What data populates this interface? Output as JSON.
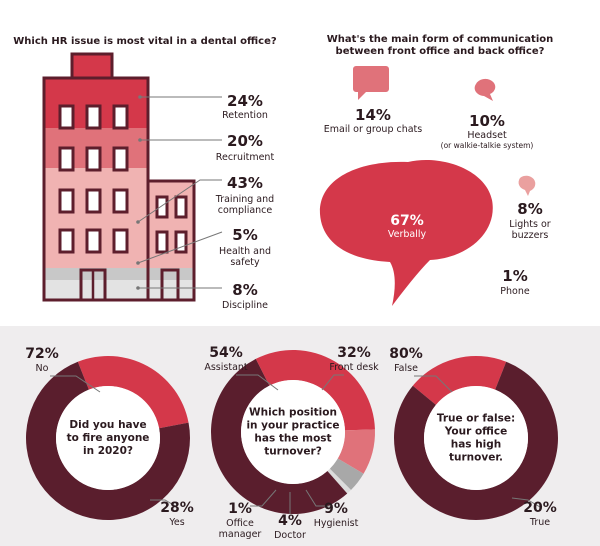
{
  "hr_panel": {
    "title": "Which HR issue is most vital in a dental office?",
    "items": [
      {
        "pct": "24%",
        "label": [
          "Retention"
        ]
      },
      {
        "pct": "20%",
        "label": [
          "Recruitment"
        ]
      },
      {
        "pct": "43%",
        "label": [
          "Training and",
          "compliance"
        ]
      },
      {
        "pct": "5%",
        "label": [
          "Health and",
          "safety"
        ]
      },
      {
        "pct": "8%",
        "label": [
          "Discipline"
        ]
      }
    ],
    "colors": {
      "retention": "#d4384a",
      "recruitment": "#e0727a",
      "training": "#f0b3b2",
      "health": "#c8c8c8",
      "discipline": "#e3e3e3",
      "outline": "#5d1e2c"
    }
  },
  "comm_panel": {
    "title": [
      "What's the main form of communication",
      "between front office and back office?"
    ],
    "items": [
      {
        "key": "email",
        "pct": "14%",
        "label": [
          "Email or group chats"
        ]
      },
      {
        "key": "headset",
        "pct": "10%",
        "label": [
          "Headset",
          "(or walkie-talkie system)"
        ]
      },
      {
        "key": "verbal",
        "pct": "67%",
        "label": [
          "Verbally"
        ]
      },
      {
        "key": "lights",
        "pct": "8%",
        "label": [
          "Lights or",
          "buzzers"
        ]
      },
      {
        "key": "phone",
        "pct": "1%",
        "label": [
          "Phone"
        ]
      }
    ],
    "colors": {
      "bubble": "#d4384a",
      "bubble_light": "#e0727a",
      "bubble_pale": "#eaa09f"
    }
  },
  "chart_data": [
    {
      "type": "bar",
      "title": "Which HR issue is most vital in a dental office?",
      "categories": [
        "Retention",
        "Recruitment",
        "Training and compliance",
        "Health and safety",
        "Discipline"
      ],
      "values": [
        24,
        20,
        43,
        5,
        8
      ],
      "unit": "%"
    },
    {
      "type": "bar",
      "title": "What's the main form of communication between front office and back office?",
      "categories": [
        "Email or group chats",
        "Headset",
        "Verbally",
        "Lights or buzzers",
        "Phone"
      ],
      "values": [
        14,
        10,
        67,
        8,
        1
      ],
      "unit": "%"
    },
    {
      "type": "pie",
      "title": "Did you have to fire anyone in 2020?",
      "categories": [
        "No",
        "Yes"
      ],
      "values": [
        72,
        28
      ],
      "colors": [
        "#5a1e2d",
        "#d4384a"
      ]
    },
    {
      "type": "pie",
      "title": "Which position in your practice has the most turnover?",
      "categories": [
        "Assistant",
        "Front desk",
        "Hygienist",
        "Doctor",
        "Office manager"
      ],
      "values": [
        54,
        32,
        9,
        4,
        1
      ],
      "colors": [
        "#5a1e2d",
        "#d4384a",
        "#e0727a",
        "#a8a8a8",
        "#dcdcdc"
      ]
    },
    {
      "type": "pie",
      "title": "True or false: Your office has high turnover.",
      "categories": [
        "False",
        "True"
      ],
      "values": [
        80,
        20
      ],
      "colors": [
        "#5a1e2d",
        "#d4384a"
      ]
    }
  ],
  "donuts": [
    {
      "center_text": [
        "Did you have",
        "to fire anyone",
        "in 2020?"
      ],
      "labels": [
        {
          "pct": "72%",
          "text": [
            "No"
          ]
        },
        {
          "pct": "28%",
          "text": [
            "Yes"
          ]
        }
      ]
    },
    {
      "center_text": [
        "Which position",
        "in your practice",
        "has the most",
        "turnover?"
      ],
      "labels": [
        {
          "pct": "54%",
          "text": [
            "Assistant"
          ]
        },
        {
          "pct": "32%",
          "text": [
            "Front desk"
          ]
        },
        {
          "pct": "9%",
          "text": [
            "Hygienist"
          ]
        },
        {
          "pct": "4%",
          "text": [
            "Doctor"
          ]
        },
        {
          "pct": "1%",
          "text": [
            "Office",
            "manager"
          ]
        }
      ]
    },
    {
      "center_text": [
        "True or false:",
        "Your office",
        "has high",
        "turnover."
      ],
      "labels": [
        {
          "pct": "80%",
          "text": [
            "False"
          ]
        },
        {
          "pct": "20%",
          "text": [
            "True"
          ]
        }
      ]
    }
  ],
  "text_color": "#2b1a1f",
  "line_color": "#777777"
}
